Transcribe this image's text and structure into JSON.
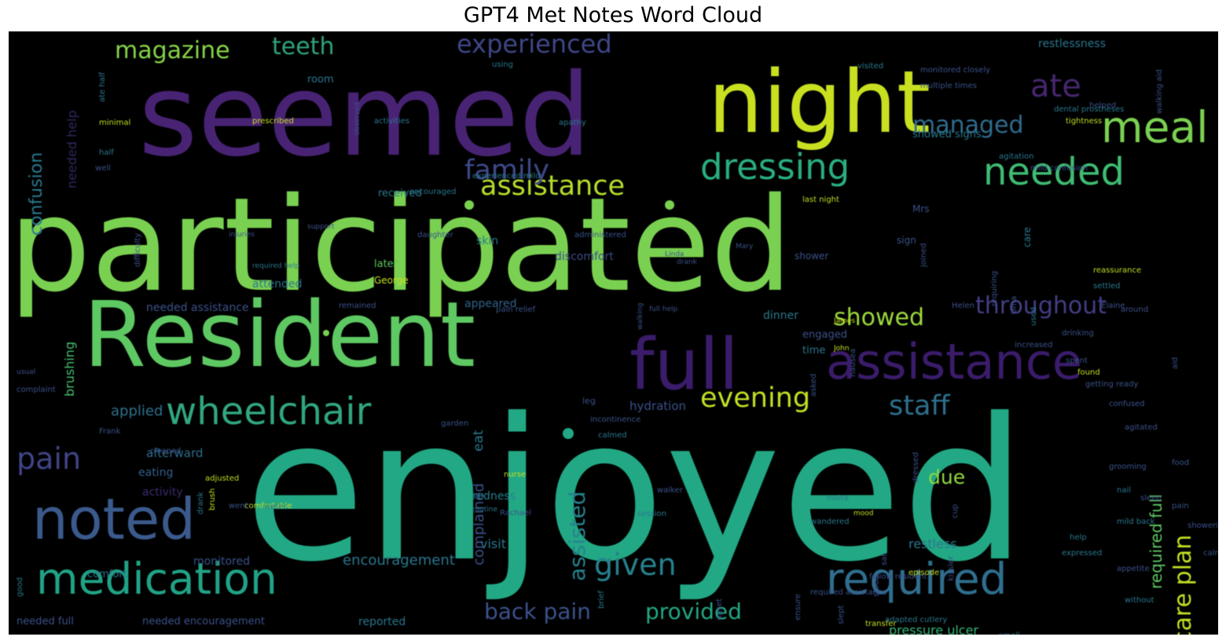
{
  "title": "GPT4 Met Notes Word Cloud",
  "colors": {
    "background": "#000000",
    "purple": "#482374",
    "indigo": "#414487",
    "blue": "#355f8d",
    "teal": "#2a788e",
    "green": "#22a884",
    "lime": "#7ad151",
    "yellow": "#bddf26"
  },
  "words": [
    {
      "text": "participated",
      "color": "#7ad151"
    },
    {
      "text": "enjoyed",
      "color": "#22a884"
    },
    {
      "text": "seemed",
      "color": "#482374"
    },
    {
      "text": "night",
      "color": "#c8e020"
    },
    {
      "text": "Resident",
      "color": "#5ec962"
    },
    {
      "text": "full",
      "color": "#3b1c6b"
    },
    {
      "text": "assistance",
      "color": "#3b1c6b"
    },
    {
      "text": "wheelchair",
      "color": "#31a77f"
    },
    {
      "text": "noted",
      "color": "#3b5a8c"
    },
    {
      "text": "medication",
      "color": "#20a386"
    },
    {
      "text": "required",
      "color": "#2f6e8e"
    },
    {
      "text": "meal",
      "color": "#7ad151"
    },
    {
      "text": "ate",
      "color": "#46266e"
    },
    {
      "text": "dressing",
      "color": "#29af7f"
    },
    {
      "text": "needed",
      "color": "#3fbc73"
    },
    {
      "text": "assistance",
      "color": "#b5de2b"
    },
    {
      "text": "family",
      "color": "#3e4989"
    },
    {
      "text": "experienced",
      "color": "#3f4788"
    },
    {
      "text": "magazine",
      "color": "#86d549"
    },
    {
      "text": "teeth",
      "color": "#2ea37d"
    },
    {
      "text": "managed",
      "color": "#2f6c8e"
    },
    {
      "text": "throughout",
      "color": "#433e85"
    },
    {
      "text": "showed",
      "color": "#9bd93c"
    },
    {
      "text": "evening",
      "color": "#c2df23"
    },
    {
      "text": "staff",
      "color": "#2d708e"
    },
    {
      "text": "pain",
      "color": "#414487"
    },
    {
      "text": "given",
      "color": "#26828e"
    },
    {
      "text": "back pain",
      "color": "#3b528b"
    },
    {
      "text": "provided",
      "color": "#22a884"
    },
    {
      "text": "encouragement",
      "color": "#2a788e"
    },
    {
      "text": "applied",
      "color": "#2c728e"
    },
    {
      "text": "due",
      "color": "#90d743"
    },
    {
      "text": "visit",
      "color": "#2a788e"
    },
    {
      "text": "restless",
      "color": "#2a788e"
    },
    {
      "text": "pressure ulcer",
      "color": "#35b779"
    },
    {
      "text": "care plan",
      "color": "#c2df23"
    },
    {
      "text": "assisted",
      "color": "#26828e"
    },
    {
      "text": "confusion",
      "color": "#2a788e"
    },
    {
      "text": "needed help",
      "color": "#31275c"
    },
    {
      "text": "brushing",
      "color": "#44bf70"
    },
    {
      "text": "complained",
      "color": "#3b528b"
    },
    {
      "text": "required full",
      "color": "#5ec962"
    },
    {
      "text": "hydration",
      "color": "#3b528b"
    },
    {
      "text": "discomfort",
      "color": "#3e4c8a"
    },
    {
      "text": "appeared",
      "color": "#32648e"
    },
    {
      "text": "dinner",
      "color": "#2a788e"
    },
    {
      "text": "attended",
      "color": "#2a788e"
    },
    {
      "text": "needed assistance",
      "color": "#3b528b"
    },
    {
      "text": "afterward",
      "color": "#2e6e8e"
    },
    {
      "text": "eating",
      "color": "#34618d"
    },
    {
      "text": "activity",
      "color": "#3d2b6e"
    },
    {
      "text": "redness",
      "color": "#26828e"
    },
    {
      "text": "monitored",
      "color": "#3b528b"
    },
    {
      "text": "comfort",
      "color": "#2a788e"
    },
    {
      "text": "reported",
      "color": "#2a788e"
    },
    {
      "text": "needed full",
      "color": "#3b528b"
    },
    {
      "text": "needed encouragement",
      "color": "#3b528b"
    },
    {
      "text": "room",
      "color": "#2a788e"
    },
    {
      "text": "skin",
      "color": "#2a788e"
    },
    {
      "text": "later",
      "color": "#5ec962"
    },
    {
      "text": "received",
      "color": "#2a788e"
    },
    {
      "text": "showed signs",
      "color": "#2a788e"
    },
    {
      "text": "restlessness",
      "color": "#2a788e"
    },
    {
      "text": "engaged",
      "color": "#3b528b"
    },
    {
      "text": "time",
      "color": "#2a788e"
    },
    {
      "text": "eat",
      "color": "#2a788e"
    },
    {
      "text": "shower",
      "color": "#3b528b"
    },
    {
      "text": "care",
      "color": "#2a788e"
    },
    {
      "text": "sign",
      "color": "#3b528b"
    },
    {
      "text": "Mrs",
      "color": "#3b528b"
    },
    {
      "text": "prescribed",
      "color": "#c8e020"
    },
    {
      "text": "activities",
      "color": "#2a788e"
    },
    {
      "text": "apathy",
      "color": "#2a788e"
    },
    {
      "text": "minimal",
      "color": "#c2df23"
    },
    {
      "text": "half",
      "color": "#2a788e"
    },
    {
      "text": "well",
      "color": "#3b528b"
    },
    {
      "text": "experienced mild",
      "color": "#2a788e"
    },
    {
      "text": "encouraged",
      "color": "#2a788e"
    },
    {
      "text": "support",
      "color": "#3b528b"
    },
    {
      "text": "injuries",
      "color": "#3b528b"
    },
    {
      "text": "daughter",
      "color": "#3b528b"
    },
    {
      "text": "required help",
      "color": "#2a788e"
    },
    {
      "text": "remained",
      "color": "#3b528b"
    },
    {
      "text": "pain relief",
      "color": "#3b528b"
    },
    {
      "text": "full help",
      "color": "#3b528b"
    },
    {
      "text": "administered",
      "color": "#3b528b"
    },
    {
      "text": "drank",
      "color": "#3b528b"
    },
    {
      "text": "George",
      "color": "#c8e020"
    },
    {
      "text": "John",
      "color": "#c8e020"
    },
    {
      "text": "James",
      "color": "#c8e020"
    },
    {
      "text": "Helen",
      "color": "#3b528b"
    },
    {
      "text": "Mary",
      "color": "#3b528b"
    },
    {
      "text": "Linda",
      "color": "#3b528b"
    },
    {
      "text": "Elaine",
      "color": "#3b528b"
    },
    {
      "text": "Frank",
      "color": "#3b528b"
    },
    {
      "text": "usual",
      "color": "#3b528b"
    },
    {
      "text": "complaint",
      "color": "#3b528b"
    },
    {
      "text": "cleaned",
      "color": "#3b528b"
    },
    {
      "text": "adjusted",
      "color": "#c2df23"
    },
    {
      "text": "brush",
      "color": "#c2df23"
    },
    {
      "text": "comfortable",
      "color": "#c2df23"
    },
    {
      "text": "water",
      "color": "#2a788e"
    },
    {
      "text": "Rachael",
      "color": "#3b528b"
    },
    {
      "text": "drank",
      "color": "#2a788e"
    },
    {
      "text": "routine",
      "color": "#2a788e"
    },
    {
      "text": "session",
      "color": "#2a788e"
    },
    {
      "text": "walker",
      "color": "#3b528b"
    },
    {
      "text": "nurse",
      "color": "#c2df23"
    },
    {
      "text": "garden",
      "color": "#3b528b"
    },
    {
      "text": "incontinence",
      "color": "#3b528b"
    },
    {
      "text": "nausea",
      "color": "#3b528b"
    },
    {
      "text": "calmed",
      "color": "#2a788e"
    },
    {
      "text": "moira",
      "color": "#2a788e"
    },
    {
      "text": "wandered",
      "color": "#2a788e"
    },
    {
      "text": "mood",
      "color": "#c2df23"
    },
    {
      "text": "required assistance",
      "color": "#3b528b"
    },
    {
      "text": "fellow resident",
      "color": "#3b528b"
    },
    {
      "text": "transfer",
      "color": "#c8e020"
    },
    {
      "text": "adapted cutlery",
      "color": "#2a788e"
    },
    {
      "text": "episode",
      "color": "#c2df23"
    },
    {
      "text": "small",
      "color": "#2a788e"
    },
    {
      "text": "help",
      "color": "#2a788e"
    },
    {
      "text": "without",
      "color": "#2a788e"
    },
    {
      "text": "expressed",
      "color": "#2a788e"
    },
    {
      "text": "appetite",
      "color": "#3b528b"
    },
    {
      "text": "mild back",
      "color": "#2a788e"
    },
    {
      "text": "nail",
      "color": "#2a788e"
    },
    {
      "text": "grooming",
      "color": "#3b528b"
    },
    {
      "text": "agitated",
      "color": "#3b528b"
    },
    {
      "text": "confused",
      "color": "#3b528b"
    },
    {
      "text": "found",
      "color": "#c8e020"
    },
    {
      "text": "spent",
      "color": "#3b528b"
    },
    {
      "text": "getting ready",
      "color": "#3b528b"
    },
    {
      "text": "increased",
      "color": "#3b528b"
    },
    {
      "text": "drinking",
      "color": "#3b528b"
    },
    {
      "text": "requiring",
      "color": "#3b528b"
    },
    {
      "text": "Uma",
      "color": "#3b528b"
    },
    {
      "text": "used",
      "color": "#2a788e"
    },
    {
      "text": "settled",
      "color": "#2a788e"
    },
    {
      "text": "around",
      "color": "#3b528b"
    },
    {
      "text": "last night",
      "color": "#c2df23"
    },
    {
      "text": "mild confusion",
      "color": "#3b528b"
    },
    {
      "text": "agitation",
      "color": "#2a788e"
    },
    {
      "text": "reassurance",
      "color": "#c2df23"
    },
    {
      "text": "ate half",
      "color": "#2a788e"
    },
    {
      "text": "observed",
      "color": "#3b528b"
    },
    {
      "text": "using",
      "color": "#2a788e"
    },
    {
      "text": "visited",
      "color": "#2a788e"
    },
    {
      "text": "monitored closely",
      "color": "#3b528b"
    },
    {
      "text": "multiple times",
      "color": "#3b528b"
    },
    {
      "text": "dental prostheses",
      "color": "#2a788e"
    },
    {
      "text": "tightness",
      "color": "#c2df23"
    },
    {
      "text": "helped",
      "color": "#3b528b"
    },
    {
      "text": "walking aid",
      "color": "#3b528b"
    },
    {
      "text": "difficulty",
      "color": "#3b528b"
    },
    {
      "text": "leg",
      "color": "#3b528b"
    },
    {
      "text": "brief",
      "color": "#2a788e"
    },
    {
      "text": "good",
      "color": "#2a788e"
    },
    {
      "text": "showering",
      "color": "#3b528b"
    },
    {
      "text": "pain",
      "color": "#3b528b"
    },
    {
      "text": "food",
      "color": "#3b528b"
    },
    {
      "text": "calm",
      "color": "#3b528b"
    },
    {
      "text": "went",
      "color": "#3b528b"
    },
    {
      "text": "slept",
      "color": "#3b528b"
    },
    {
      "text": "ensure",
      "color": "#3b528b"
    },
    {
      "text": "upset",
      "color": "#3b528b"
    },
    {
      "text": "asked",
      "color": "#3b528b"
    },
    {
      "text": "aid",
      "color": "#3b528b"
    },
    {
      "text": "stood",
      "color": "#3b528b"
    },
    {
      "text": "kissler",
      "color": "#3b528b"
    },
    {
      "text": "cup",
      "color": "#3b528b"
    },
    {
      "text": "walking",
      "color": "#3b528b"
    },
    {
      "text": "sleep",
      "color": "#3b528b"
    },
    {
      "text": "joined",
      "color": "#3b528b"
    },
    {
      "text": "sat",
      "color": "#3b528b"
    },
    {
      "text": "dressed",
      "color": "#3b528b"
    }
  ]
}
